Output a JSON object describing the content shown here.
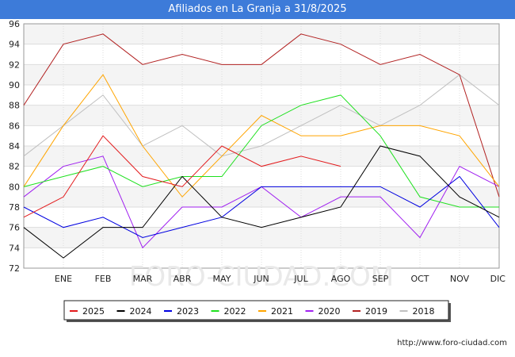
{
  "header": {
    "title": "Afiliados en La Granja a 31/8/2025"
  },
  "footer": {
    "source": "http://www.foro-ciudad.com"
  },
  "watermark": "FORO-CIUDAD.COM",
  "chart_data": {
    "type": "line",
    "title": "Afiliados en La Granja a 31/8/2025",
    "xlabel": "",
    "ylabel": "",
    "categories": [
      "",
      "ENE",
      "FEB",
      "MAR",
      "ABR",
      "MAY",
      "JUN",
      "JUL",
      "AGO",
      "SEP",
      "OCT",
      "NOV",
      "DIC"
    ],
    "ylim": [
      72,
      96
    ],
    "yticks": [
      72,
      74,
      76,
      78,
      80,
      82,
      84,
      86,
      88,
      90,
      92,
      94,
      96
    ],
    "grid": true,
    "legend_position": "bottom",
    "series": [
      {
        "name": "2025",
        "color": "#e31a1c",
        "values": [
          77,
          79,
          85,
          81,
          80,
          84,
          82,
          83,
          82,
          null,
          null,
          null,
          null
        ]
      },
      {
        "name": "2024",
        "color": "#000000",
        "values": [
          76,
          73,
          76,
          76,
          81,
          77,
          76,
          77,
          78,
          84,
          83,
          79,
          77
        ]
      },
      {
        "name": "2023",
        "color": "#0000e0",
        "values": [
          78,
          76,
          77,
          75,
          76,
          77,
          80,
          80,
          80,
          80,
          78,
          81,
          76
        ]
      },
      {
        "name": "2022",
        "color": "#1ee01e",
        "values": [
          80,
          81,
          82,
          80,
          81,
          81,
          86,
          88,
          89,
          85,
          79,
          78,
          78
        ]
      },
      {
        "name": "2021",
        "color": "#ffa500",
        "values": [
          80,
          86,
          91,
          84,
          79,
          83,
          87,
          85,
          85,
          86,
          86,
          85,
          80
        ]
      },
      {
        "name": "2020",
        "color": "#a020f0",
        "values": [
          79,
          82,
          83,
          74,
          78,
          78,
          80,
          77,
          79,
          79,
          75,
          82,
          80
        ]
      },
      {
        "name": "2019",
        "color": "#b22222",
        "values": [
          88,
          94,
          95,
          92,
          93,
          92,
          92,
          95,
          94,
          92,
          93,
          91,
          79
        ]
      },
      {
        "name": "2018",
        "color": "#c0c0c0",
        "values": [
          83,
          86,
          89,
          84,
          86,
          83,
          84,
          86,
          88,
          86,
          88,
          91,
          88
        ]
      }
    ]
  }
}
